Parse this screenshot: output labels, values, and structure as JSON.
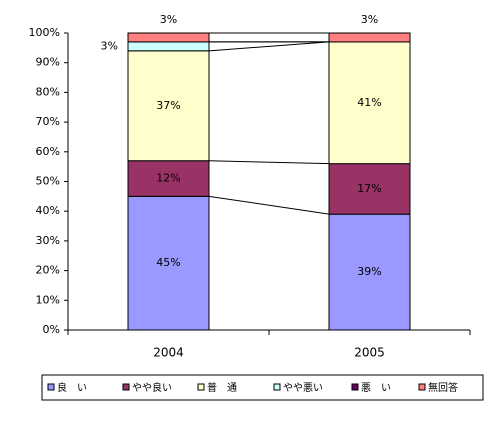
{
  "chart_data": {
    "type": "stacked-bar-100",
    "categories": [
      "2004",
      "2005"
    ],
    "series": [
      {
        "name": "良　い",
        "color": "#9999ff",
        "values": [
          45,
          39
        ],
        "value_labels": [
          "45%",
          "39%"
        ]
      },
      {
        "name": "やや良い",
        "color": "#993366",
        "values": [
          12,
          17
        ],
        "value_labels": [
          "12%",
          "17%"
        ]
      },
      {
        "name": "普　通",
        "color": "#ffffcc",
        "values": [
          37,
          41
        ],
        "value_labels": [
          "37%",
          "41%"
        ]
      },
      {
        "name": "やや悪い",
        "color": "#ccffff",
        "values": [
          3,
          0
        ],
        "value_labels": [
          "3%",
          null
        ]
      },
      {
        "name": "悪　い",
        "color": "#660066",
        "values": [
          0,
          0
        ],
        "value_labels": [
          null,
          null
        ]
      },
      {
        "name": "無回答",
        "color": "#ff8080",
        "values": [
          3,
          3
        ],
        "value_labels": [
          "3%",
          "3%"
        ]
      }
    ],
    "ylim": [
      0,
      100
    ],
    "yticks": [
      {
        "value": 0,
        "label": "0%"
      },
      {
        "value": 10,
        "label": "10%"
      },
      {
        "value": 20,
        "label": "20%"
      },
      {
        "value": 30,
        "label": "30%"
      },
      {
        "value": 40,
        "label": "40%"
      },
      {
        "value": 50,
        "label": "50%"
      },
      {
        "value": 60,
        "label": "60%"
      },
      {
        "value": 70,
        "label": "70%"
      },
      {
        "value": 80,
        "label": "80%"
      },
      {
        "value": 90,
        "label": "90%"
      },
      {
        "value": 100,
        "label": "100%"
      }
    ],
    "legend": "bottom"
  }
}
